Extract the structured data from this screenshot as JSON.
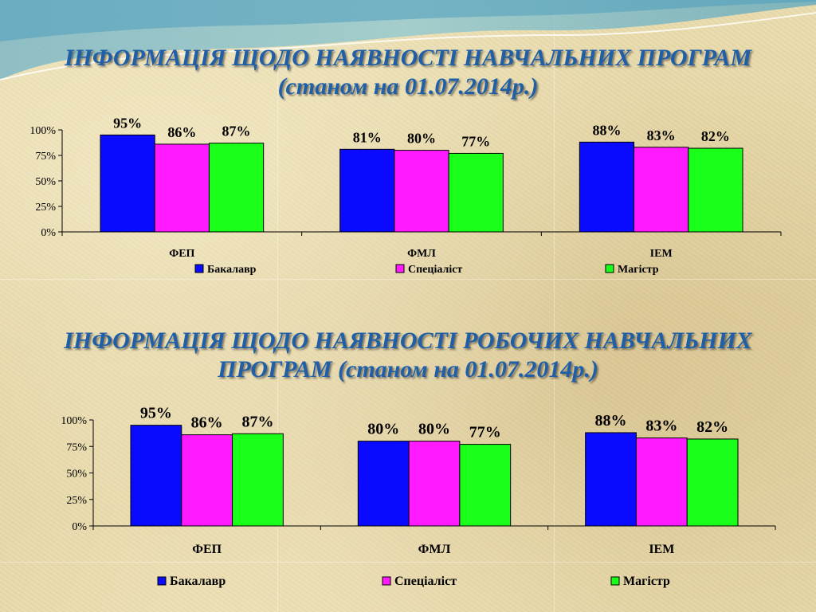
{
  "slide": {
    "heading_1": {
      "line_1": "ІНФОРМАЦІЯ ЩОДО НАЯВНОСТІ НАВЧАЛЬНИХ ПРОГРАМ",
      "line_2": "(станом на 01.07.2014р.)"
    },
    "heading_2": {
      "line_1": "ІНФОРМАЦІЯ ЩОДО НАЯВНОСТІ РОБОЧИХ НАВЧАЛЬНИХ",
      "line_2": "ПРОГРАМ (станом на 01.07.2014р.)"
    },
    "colors": {
      "heading": "#1f5fa8",
      "bachelor": "#0a0aff",
      "specialist": "#ff1aff",
      "master": "#1aff1a"
    }
  },
  "chart_data": [
    {
      "type": "bar",
      "categories": [
        "ФЕП",
        "ФМЛ",
        "ІЕМ"
      ],
      "series": [
        {
          "name": "Бакалавр",
          "values": [
            95,
            81,
            88
          ],
          "color": "#0a0aff"
        },
        {
          "name": "Спеціаліст",
          "values": [
            86,
            80,
            83
          ],
          "color": "#ff1aff"
        },
        {
          "name": "Магістр",
          "values": [
            87,
            77,
            82
          ],
          "color": "#1aff1a"
        }
      ],
      "data_labels": [
        [
          "95%",
          "81%",
          "88%"
        ],
        [
          "86%",
          "80%",
          "83%"
        ],
        [
          "87%",
          "77%",
          "82%"
        ]
      ],
      "yticks": [
        "0%",
        "25%",
        "50%",
        "75%",
        "100%"
      ],
      "ylim": [
        0,
        100
      ],
      "grid": false,
      "legend": "bottom"
    },
    {
      "type": "bar",
      "categories": [
        "ФЕП",
        "ФМЛ",
        "ІЕМ"
      ],
      "series": [
        {
          "name": "Бакалавр",
          "values": [
            95,
            80,
            88
          ],
          "color": "#0a0aff"
        },
        {
          "name": "Спеціаліст",
          "values": [
            86,
            80,
            83
          ],
          "color": "#ff1aff"
        },
        {
          "name": "Магістр",
          "values": [
            87,
            77,
            82
          ],
          "color": "#1aff1a"
        }
      ],
      "data_labels": [
        [
          "95%",
          "80%",
          "88%"
        ],
        [
          "86%",
          "80%",
          "83%"
        ],
        [
          "87%",
          "77%",
          "82%"
        ]
      ],
      "yticks": [
        "0%",
        "25%",
        "50%",
        "75%",
        "100%"
      ],
      "ylim": [
        0,
        100
      ],
      "grid": false,
      "legend": "bottom"
    }
  ]
}
